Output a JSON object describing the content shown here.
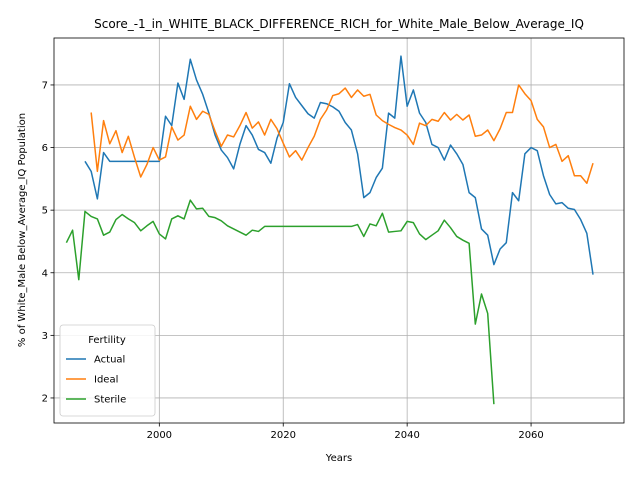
{
  "chart_data": {
    "type": "line",
    "title": "Score_-1_in_WHITE_BLACK_DIFFERENCE_RICH_for_White_Male_Below_Average_IQ",
    "xlabel": "Years",
    "ylabel": "% of White_Male Below_Average_IQ Population",
    "xlim": [
      1983,
      2075
    ],
    "ylim": [
      1.6,
      7.75
    ],
    "xticks": [
      2000,
      2020,
      2040,
      2060
    ],
    "yticks": [
      2,
      3,
      4,
      5,
      6,
      7
    ],
    "grid": true,
    "legend": {
      "title": "Fertility",
      "position": "lower-left"
    },
    "series": [
      {
        "name": "Actual",
        "color": "#1f77b4",
        "points": [
          [
            1988,
            5.78
          ],
          [
            1989,
            5.62
          ],
          [
            1990,
            5.18
          ],
          [
            1991,
            5.92
          ],
          [
            1992,
            5.78
          ],
          [
            1993,
            5.78
          ],
          [
            1994,
            5.78
          ],
          [
            1995,
            5.78
          ],
          [
            1996,
            5.78
          ],
          [
            1997,
            5.78
          ],
          [
            1998,
            5.78
          ],
          [
            1999,
            5.78
          ],
          [
            2000,
            5.78
          ],
          [
            2001,
            6.5
          ],
          [
            2002,
            6.35
          ],
          [
            2003,
            7.03
          ],
          [
            2004,
            6.77
          ],
          [
            2005,
            7.41
          ],
          [
            2006,
            7.08
          ],
          [
            2007,
            6.85
          ],
          [
            2008,
            6.55
          ],
          [
            2009,
            6.2
          ],
          [
            2010,
            5.96
          ],
          [
            2011,
            5.84
          ],
          [
            2012,
            5.66
          ],
          [
            2013,
            6.05
          ],
          [
            2014,
            6.35
          ],
          [
            2015,
            6.2
          ],
          [
            2016,
            5.97
          ],
          [
            2017,
            5.92
          ],
          [
            2018,
            5.75
          ],
          [
            2019,
            6.15
          ],
          [
            2020,
            6.4
          ],
          [
            2021,
            7.02
          ],
          [
            2022,
            6.8
          ],
          [
            2023,
            6.67
          ],
          [
            2024,
            6.54
          ],
          [
            2025,
            6.47
          ],
          [
            2026,
            6.72
          ],
          [
            2027,
            6.7
          ],
          [
            2028,
            6.65
          ],
          [
            2029,
            6.58
          ],
          [
            2030,
            6.4
          ],
          [
            2031,
            6.28
          ],
          [
            2032,
            5.9
          ],
          [
            2033,
            5.2
          ],
          [
            2034,
            5.28
          ],
          [
            2035,
            5.52
          ],
          [
            2036,
            5.67
          ],
          [
            2037,
            6.55
          ],
          [
            2038,
            6.47
          ],
          [
            2039,
            7.46
          ],
          [
            2040,
            6.66
          ],
          [
            2041,
            6.92
          ],
          [
            2042,
            6.55
          ],
          [
            2043,
            6.4
          ],
          [
            2044,
            6.05
          ],
          [
            2045,
            6.0
          ],
          [
            2046,
            5.8
          ],
          [
            2047,
            6.04
          ],
          [
            2048,
            5.9
          ],
          [
            2049,
            5.73
          ],
          [
            2050,
            5.28
          ],
          [
            2051,
            5.2
          ],
          [
            2052,
            4.7
          ],
          [
            2053,
            4.6
          ],
          [
            2054,
            4.13
          ],
          [
            2055,
            4.38
          ],
          [
            2056,
            4.48
          ],
          [
            2057,
            5.28
          ],
          [
            2058,
            5.15
          ],
          [
            2059,
            5.9
          ],
          [
            2060,
            6.0
          ],
          [
            2061,
            5.95
          ],
          [
            2062,
            5.55
          ],
          [
            2063,
            5.25
          ],
          [
            2064,
            5.1
          ],
          [
            2065,
            5.12
          ],
          [
            2066,
            5.03
          ],
          [
            2067,
            5.01
          ],
          [
            2068,
            4.85
          ],
          [
            2069,
            4.63
          ],
          [
            2070,
            3.97
          ]
        ]
      },
      {
        "name": "Ideal",
        "color": "#ff7f0e",
        "points": [
          [
            1989,
            6.56
          ],
          [
            1990,
            5.62
          ],
          [
            1991,
            6.43
          ],
          [
            1992,
            6.06
          ],
          [
            1993,
            6.27
          ],
          [
            1994,
            5.92
          ],
          [
            1995,
            6.18
          ],
          [
            1996,
            5.84
          ],
          [
            1997,
            5.53
          ],
          [
            1998,
            5.73
          ],
          [
            1999,
            6.0
          ],
          [
            2000,
            5.8
          ],
          [
            2001,
            5.85
          ],
          [
            2002,
            6.33
          ],
          [
            2003,
            6.12
          ],
          [
            2004,
            6.2
          ],
          [
            2005,
            6.66
          ],
          [
            2006,
            6.45
          ],
          [
            2007,
            6.58
          ],
          [
            2008,
            6.53
          ],
          [
            2009,
            6.26
          ],
          [
            2010,
            6.02
          ],
          [
            2011,
            6.2
          ],
          [
            2012,
            6.17
          ],
          [
            2013,
            6.35
          ],
          [
            2014,
            6.56
          ],
          [
            2015,
            6.31
          ],
          [
            2016,
            6.41
          ],
          [
            2017,
            6.2
          ],
          [
            2018,
            6.45
          ],
          [
            2019,
            6.3
          ],
          [
            2020,
            6.07
          ],
          [
            2021,
            5.85
          ],
          [
            2022,
            5.95
          ],
          [
            2023,
            5.8
          ],
          [
            2024,
            6.0
          ],
          [
            2025,
            6.18
          ],
          [
            2026,
            6.45
          ],
          [
            2027,
            6.6
          ],
          [
            2028,
            6.83
          ],
          [
            2029,
            6.86
          ],
          [
            2030,
            6.95
          ],
          [
            2031,
            6.8
          ],
          [
            2032,
            6.92
          ],
          [
            2033,
            6.82
          ],
          [
            2034,
            6.85
          ],
          [
            2035,
            6.52
          ],
          [
            2036,
            6.43
          ],
          [
            2037,
            6.37
          ],
          [
            2038,
            6.32
          ],
          [
            2039,
            6.28
          ],
          [
            2040,
            6.2
          ],
          [
            2041,
            6.05
          ],
          [
            2042,
            6.39
          ],
          [
            2043,
            6.35
          ],
          [
            2044,
            6.45
          ],
          [
            2045,
            6.42
          ],
          [
            2046,
            6.56
          ],
          [
            2047,
            6.44
          ],
          [
            2048,
            6.53
          ],
          [
            2049,
            6.44
          ],
          [
            2050,
            6.52
          ],
          [
            2051,
            6.18
          ],
          [
            2052,
            6.2
          ],
          [
            2053,
            6.28
          ],
          [
            2054,
            6.11
          ],
          [
            2055,
            6.3
          ],
          [
            2056,
            6.56
          ],
          [
            2057,
            6.56
          ],
          [
            2058,
            7.0
          ],
          [
            2059,
            6.86
          ],
          [
            2060,
            6.75
          ],
          [
            2061,
            6.45
          ],
          [
            2062,
            6.33
          ],
          [
            2063,
            6.0
          ],
          [
            2064,
            6.05
          ],
          [
            2065,
            5.78
          ],
          [
            2066,
            5.87
          ],
          [
            2067,
            5.55
          ],
          [
            2068,
            5.55
          ],
          [
            2069,
            5.43
          ],
          [
            2070,
            5.75
          ]
        ]
      },
      {
        "name": "Sterile",
        "color": "#2ca02c",
        "points": [
          [
            1985,
            4.48
          ],
          [
            1986,
            4.68
          ],
          [
            1987,
            3.89
          ],
          [
            1988,
            4.98
          ],
          [
            1989,
            4.9
          ],
          [
            1990,
            4.86
          ],
          [
            1991,
            4.6
          ],
          [
            1992,
            4.65
          ],
          [
            1993,
            4.85
          ],
          [
            1994,
            4.93
          ],
          [
            1995,
            4.86
          ],
          [
            1996,
            4.8
          ],
          [
            1997,
            4.67
          ],
          [
            1998,
            4.75
          ],
          [
            1999,
            4.82
          ],
          [
            2000,
            4.62
          ],
          [
            2001,
            4.54
          ],
          [
            2002,
            4.86
          ],
          [
            2003,
            4.91
          ],
          [
            2004,
            4.86
          ],
          [
            2005,
            5.16
          ],
          [
            2006,
            5.02
          ],
          [
            2007,
            5.03
          ],
          [
            2008,
            4.9
          ],
          [
            2009,
            4.88
          ],
          [
            2010,
            4.83
          ],
          [
            2011,
            4.75
          ],
          [
            2012,
            4.7
          ],
          [
            2013,
            4.65
          ],
          [
            2014,
            4.6
          ],
          [
            2015,
            4.68
          ],
          [
            2016,
            4.66
          ],
          [
            2017,
            4.74
          ],
          [
            2018,
            4.74
          ],
          [
            2019,
            4.74
          ],
          [
            2020,
            4.74
          ],
          [
            2021,
            4.74
          ],
          [
            2022,
            4.74
          ],
          [
            2023,
            4.74
          ],
          [
            2024,
            4.74
          ],
          [
            2025,
            4.74
          ],
          [
            2026,
            4.74
          ],
          [
            2027,
            4.74
          ],
          [
            2028,
            4.74
          ],
          [
            2029,
            4.74
          ],
          [
            2030,
            4.74
          ],
          [
            2031,
            4.74
          ],
          [
            2032,
            4.77
          ],
          [
            2033,
            4.58
          ],
          [
            2034,
            4.78
          ],
          [
            2035,
            4.75
          ],
          [
            2036,
            4.95
          ],
          [
            2037,
            4.65
          ],
          [
            2038,
            4.66
          ],
          [
            2039,
            4.67
          ],
          [
            2040,
            4.82
          ],
          [
            2041,
            4.8
          ],
          [
            2042,
            4.62
          ],
          [
            2043,
            4.53
          ],
          [
            2044,
            4.6
          ],
          [
            2045,
            4.67
          ],
          [
            2046,
            4.84
          ],
          [
            2047,
            4.72
          ],
          [
            2048,
            4.58
          ],
          [
            2049,
            4.52
          ],
          [
            2050,
            4.47
          ],
          [
            2051,
            3.18
          ],
          [
            2052,
            3.66
          ],
          [
            2053,
            3.35
          ],
          [
            2054,
            1.9
          ]
        ]
      }
    ]
  }
}
